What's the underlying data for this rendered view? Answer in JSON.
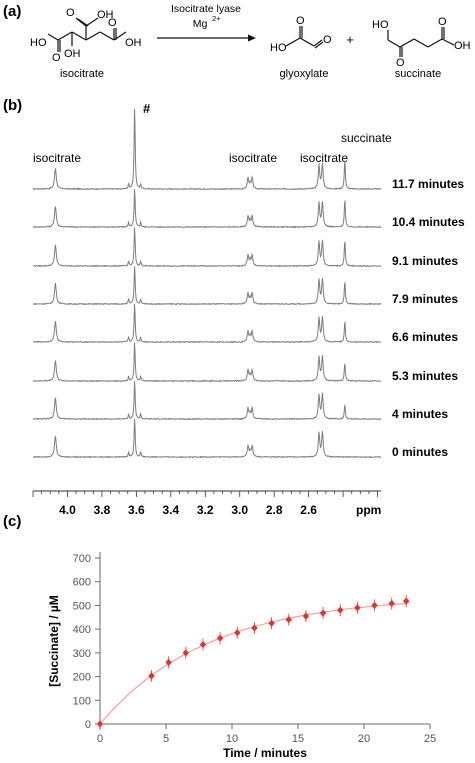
{
  "panel_a": {
    "label": "(a)",
    "enzyme": "Isocitrate lyase",
    "cofactor": "Mg",
    "cofactor_charge": "2+",
    "compounds": [
      {
        "name": "isocitrate"
      },
      {
        "name": "glyoxylate"
      },
      {
        "name": "succinate"
      }
    ],
    "plus": "+",
    "atom_labels": {
      "ho": "HO",
      "oh": "OH",
      "o": "O"
    }
  },
  "panel_b": {
    "label": "(b)",
    "peak_labels": [
      "isocitrate",
      "isocitrate",
      "isocitrate",
      "succinate"
    ],
    "hash_label": "#",
    "axis_unit": "ppm",
    "colors": {
      "trace": "#7b8079"
    }
  },
  "panel_c": {
    "label": "(c)"
  },
  "chart_data": [
    {
      "type": "line",
      "panel": "(b)",
      "xlabel": "ppm",
      "x_axis": "reversed",
      "xlim": [
        4.2,
        2.18
      ],
      "x_ticks": [
        "4.0",
        "3.8",
        "3.6",
        "3.4",
        "3.2",
        "3.0",
        "2.8",
        "2.6"
      ],
      "series": [
        {
          "name": "11.7 minutes",
          "succinate_rel": 1.0
        },
        {
          "name": "10.4 minutes",
          "succinate_rel": 0.95
        },
        {
          "name": "9.1 minutes",
          "succinate_rel": 0.88
        },
        {
          "name": "7.9 minutes",
          "succinate_rel": 0.8
        },
        {
          "name": "6.6 minutes",
          "succinate_rel": 0.72
        },
        {
          "name": "5.3 minutes",
          "succinate_rel": 0.62
        },
        {
          "name": "4 minutes",
          "succinate_rel": 0.5
        },
        {
          "name": "0 minutes",
          "succinate_rel": 0.0
        }
      ],
      "peaks_ppm": {
        "isocitrate_1": 4.07,
        "hash": 3.61,
        "isocitrate_2": 2.94,
        "isocitrate_3": 2.53,
        "succinate": 2.39
      }
    },
    {
      "type": "scatter",
      "panel": "(c)",
      "xlabel": "Time / minutes",
      "ylabel": "[Succinate] / µM",
      "xlim": [
        0,
        25
      ],
      "ylim": [
        0,
        700
      ],
      "x_ticks": [
        0,
        5,
        10,
        15,
        20,
        25
      ],
      "y_ticks": [
        0,
        100,
        200,
        300,
        400,
        500,
        600,
        700
      ],
      "grid": false,
      "colors": {
        "points": "#e8302a",
        "fit": "#f2a19c",
        "axis": "#6a6a6a"
      },
      "x": [
        0,
        3.9,
        5.2,
        6.5,
        7.8,
        9.1,
        10.4,
        11.7,
        13.0,
        14.3,
        15.6,
        16.9,
        18.2,
        19.5,
        20.8,
        22.1,
        23.2
      ],
      "y": [
        0,
        203,
        260,
        300,
        335,
        362,
        385,
        405,
        425,
        440,
        455,
        468,
        480,
        490,
        500,
        508,
        518
      ],
      "fit_curve": true
    }
  ]
}
